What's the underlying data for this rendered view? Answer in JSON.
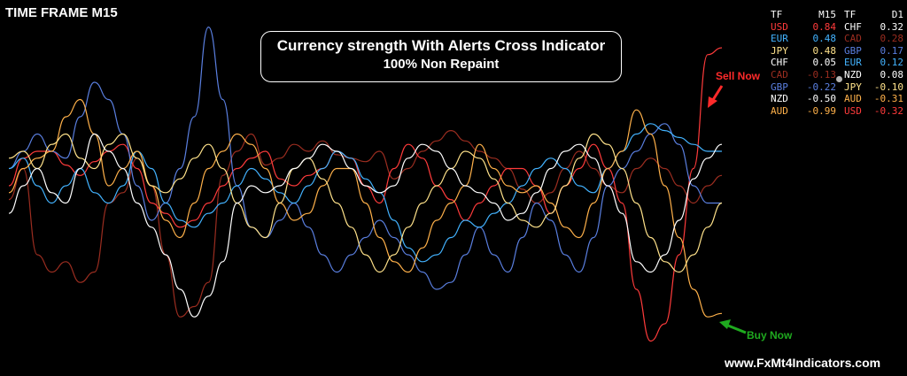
{
  "timeframe_label": "TIME FRAME M15",
  "banner": {
    "title": "Currency strength With Alerts Cross Indicator",
    "subtitle": "100% Non Repaint"
  },
  "annotations": {
    "sell": "Sell Now",
    "buy": "Buy Now"
  },
  "website": "www.FxMt4Indicators.com",
  "strength_table": {
    "headers": [
      "TF",
      "M15",
      "TF",
      "D1"
    ],
    "rows": [
      {
        "m15_currency": "USD",
        "m15_value": "0.84",
        "m15_color": "#ff3b3b",
        "d1_currency": "CHF",
        "d1_value": "0.32",
        "d1_color": "#ffffff"
      },
      {
        "m15_currency": "EUR",
        "m15_value": "0.48",
        "m15_color": "#43b3ff",
        "d1_currency": "CAD",
        "d1_value": "0.28",
        "d1_color": "#9b2d20"
      },
      {
        "m15_currency": "JPY",
        "m15_value": "0.48",
        "m15_color": "#ffe28a",
        "d1_currency": "GBP",
        "d1_value": "0.17",
        "d1_color": "#5a7fe0"
      },
      {
        "m15_currency": "CHF",
        "m15_value": "0.05",
        "m15_color": "#ffffff",
        "d1_currency": "EUR",
        "d1_value": "0.12",
        "d1_color": "#43b3ff"
      },
      {
        "m15_currency": "CAD",
        "m15_value": "-0.13",
        "m15_color": "#9b2d20",
        "d1_currency": "NZD",
        "d1_value": "0.08",
        "d1_color": "#ffffff"
      },
      {
        "m15_currency": "GBP",
        "m15_value": "-0.22",
        "m15_color": "#5a7fe0",
        "d1_currency": "JPY",
        "d1_value": "-0.10",
        "d1_color": "#ffe28a"
      },
      {
        "m15_currency": "NZD",
        "m15_value": "-0.50",
        "m15_color": "#ffffff",
        "d1_currency": "AUD",
        "d1_value": "-0.31",
        "d1_color": "#ffb14a"
      },
      {
        "m15_currency": "AUD",
        "m15_value": "-0.99",
        "m15_color": "#ffb14a",
        "d1_currency": "USD",
        "d1_value": "-0.32",
        "d1_color": "#ff3b3b"
      }
    ]
  },
  "chart_data": {
    "type": "line",
    "background": "#000000",
    "grid": false,
    "ylim": [
      0,
      1
    ],
    "x": [
      0,
      1,
      2,
      3,
      4,
      5,
      6,
      7,
      8,
      9,
      10,
      11,
      12,
      13,
      14,
      15,
      16,
      17,
      18,
      19,
      20,
      21,
      22,
      23,
      24,
      25,
      26,
      27,
      28,
      29,
      30,
      31,
      32,
      33,
      34,
      35,
      36,
      37,
      38,
      39,
      40,
      41,
      42,
      43,
      44,
      45,
      46,
      47,
      48,
      49,
      50
    ],
    "series": [
      {
        "color": "#9b2d20",
        "values": [
          0.46,
          0.55,
          0.3,
          0.25,
          0.28,
          0.22,
          0.25,
          0.45,
          0.48,
          0.58,
          0.5,
          0.3,
          0.12,
          0.15,
          0.22,
          0.53,
          0.6,
          0.65,
          0.56,
          0.58,
          0.62,
          0.6,
          0.63,
          0.59,
          0.58,
          0.57,
          0.6,
          0.52,
          0.55,
          0.6,
          0.63,
          0.66,
          0.63,
          0.6,
          0.58,
          0.55,
          0.49,
          0.45,
          0.48,
          0.55,
          0.6,
          0.55,
          0.5,
          0.48,
          0.55,
          0.58,
          0.55,
          0.5,
          0.45,
          0.5,
          0.53
        ]
      },
      {
        "color": "#ff3b3b",
        "values": [
          0.5,
          0.58,
          0.6,
          0.6,
          0.56,
          0.53,
          0.57,
          0.6,
          0.62,
          0.55,
          0.45,
          0.42,
          0.38,
          0.4,
          0.45,
          0.5,
          0.55,
          0.58,
          0.6,
          0.52,
          0.5,
          0.53,
          0.55,
          0.6,
          0.58,
          0.5,
          0.45,
          0.55,
          0.62,
          0.58,
          0.5,
          0.46,
          0.4,
          0.45,
          0.5,
          0.55,
          0.55,
          0.5,
          0.42,
          0.5,
          0.55,
          0.62,
          0.55,
          0.45,
          0.2,
          0.05,
          0.1,
          0.3,
          0.55,
          0.88,
          0.9
        ]
      },
      {
        "color": "#5a7fe0",
        "values": [
          0.55,
          0.6,
          0.65,
          0.6,
          0.58,
          0.7,
          0.8,
          0.75,
          0.65,
          0.5,
          0.4,
          0.45,
          0.55,
          0.7,
          0.96,
          0.75,
          0.5,
          0.38,
          0.35,
          0.4,
          0.45,
          0.38,
          0.3,
          0.25,
          0.3,
          0.35,
          0.4,
          0.35,
          0.3,
          0.25,
          0.2,
          0.22,
          0.3,
          0.38,
          0.3,
          0.25,
          0.35,
          0.45,
          0.4,
          0.3,
          0.25,
          0.35,
          0.5,
          0.55,
          0.6,
          0.65,
          0.68,
          0.62,
          0.5,
          0.45,
          0.45
        ]
      },
      {
        "color": "#43b3ff",
        "values": [
          0.55,
          0.58,
          0.5,
          0.45,
          0.5,
          0.55,
          0.48,
          0.45,
          0.5,
          0.6,
          0.55,
          0.45,
          0.4,
          0.38,
          0.42,
          0.45,
          0.5,
          0.55,
          0.52,
          0.48,
          0.45,
          0.5,
          0.55,
          0.6,
          0.58,
          0.52,
          0.48,
          0.4,
          0.32,
          0.28,
          0.3,
          0.35,
          0.4,
          0.38,
          0.42,
          0.45,
          0.5,
          0.55,
          0.58,
          0.55,
          0.5,
          0.48,
          0.55,
          0.6,
          0.65,
          0.68,
          0.66,
          0.64,
          0.62,
          0.6,
          0.6
        ]
      },
      {
        "color": "#ffb14a",
        "values": [
          0.48,
          0.55,
          0.58,
          0.6,
          0.7,
          0.75,
          0.65,
          0.5,
          0.55,
          0.6,
          0.5,
          0.4,
          0.35,
          0.45,
          0.55,
          0.6,
          0.65,
          0.62,
          0.55,
          0.45,
          0.4,
          0.42,
          0.5,
          0.55,
          0.55,
          0.45,
          0.35,
          0.28,
          0.25,
          0.32,
          0.4,
          0.45,
          0.5,
          0.62,
          0.55,
          0.5,
          0.48,
          0.5,
          0.45,
          0.38,
          0.35,
          0.45,
          0.55,
          0.6,
          0.72,
          0.65,
          0.5,
          0.35,
          0.2,
          0.12,
          0.13
        ]
      },
      {
        "color": "#ffe28a",
        "values": [
          0.58,
          0.6,
          0.55,
          0.62,
          0.65,
          0.58,
          0.55,
          0.62,
          0.65,
          0.58,
          0.5,
          0.48,
          0.52,
          0.58,
          0.62,
          0.55,
          0.45,
          0.38,
          0.35,
          0.45,
          0.55,
          0.58,
          0.52,
          0.45,
          0.38,
          0.3,
          0.25,
          0.3,
          0.38,
          0.45,
          0.5,
          0.55,
          0.6,
          0.58,
          0.52,
          0.45,
          0.4,
          0.38,
          0.42,
          0.5,
          0.58,
          0.65,
          0.62,
          0.55,
          0.45,
          0.35,
          0.28,
          0.25,
          0.3,
          0.38,
          0.45
        ]
      },
      {
        "color": "#ffffff",
        "values": [
          0.42,
          0.5,
          0.55,
          0.48,
          0.45,
          0.55,
          0.65,
          0.6,
          0.55,
          0.45,
          0.38,
          0.3,
          0.2,
          0.12,
          0.18,
          0.28,
          0.45,
          0.5,
          0.48,
          0.5,
          0.55,
          0.58,
          0.62,
          0.6,
          0.55,
          0.5,
          0.48,
          0.5,
          0.58,
          0.62,
          0.6,
          0.55,
          0.5,
          0.48,
          0.45,
          0.4,
          0.42,
          0.48,
          0.55,
          0.6,
          0.62,
          0.58,
          0.5,
          0.42,
          0.28,
          0.25,
          0.3,
          0.4,
          0.52,
          0.58,
          0.62
        ]
      }
    ]
  }
}
